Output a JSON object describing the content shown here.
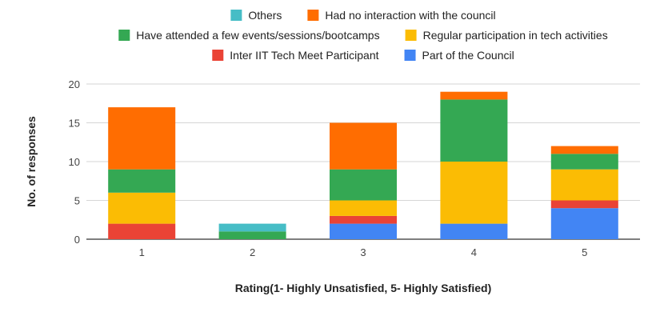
{
  "chart_data": {
    "type": "bar",
    "stacked": true,
    "title": "",
    "xlabel": "Rating(1- Highly Unsatisfied, 5- Highly Satisfied)",
    "ylabel": "No. of responses",
    "categories": [
      "1",
      "2",
      "3",
      "4",
      "5"
    ],
    "ylim": [
      0,
      20
    ],
    "yticks": [
      "0",
      "5",
      "10",
      "15",
      "20"
    ],
    "grid": true,
    "legend_position": "top",
    "series": [
      {
        "name": "Part of the Council",
        "color": "#4285f4",
        "values": [
          0,
          0,
          2,
          2,
          4
        ]
      },
      {
        "name": "Inter IIT Tech Meet Participant",
        "color": "#ea4335",
        "values": [
          2,
          0,
          1,
          0,
          1
        ]
      },
      {
        "name": "Regular participation in tech activities",
        "color": "#fbbc04",
        "values": [
          4,
          0,
          2,
          8,
          4
        ]
      },
      {
        "name": "Have attended a few events/sessions/bootcamps",
        "color": "#34a853",
        "values": [
          3,
          1,
          4,
          8,
          2
        ]
      },
      {
        "name": "Had no interaction with the council",
        "color": "#ff6d01",
        "values": [
          8,
          0,
          6,
          1,
          1
        ]
      },
      {
        "name": "Others",
        "color": "#46bdc6",
        "values": [
          0,
          1,
          0,
          0,
          0
        ]
      }
    ]
  }
}
